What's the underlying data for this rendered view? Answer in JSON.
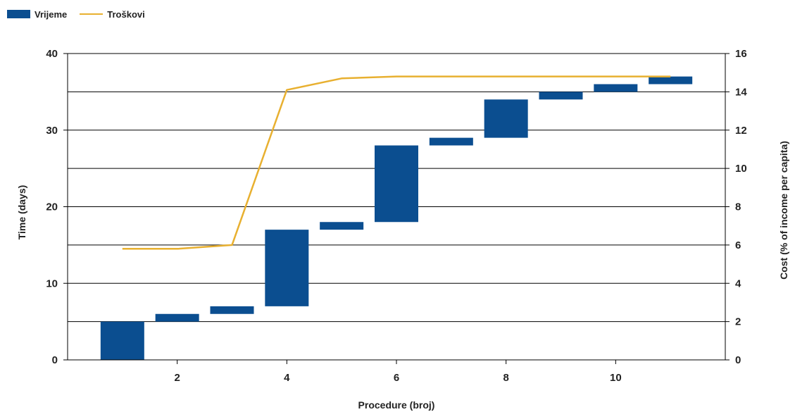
{
  "chart_data": {
    "type": "bar",
    "subtype": "waterfall-with-line",
    "legend": {
      "position": "top-left",
      "entries": [
        {
          "label": "Vrijeme",
          "kind": "bar",
          "color": "#0B4E90"
        },
        {
          "label": "Troškovi",
          "kind": "line",
          "color": "#E8B030"
        }
      ]
    },
    "xlabel": "Procedure (broj)",
    "ylabel": "Time (days)",
    "y2label": "Cost (% of income per capita)",
    "xlim": [
      0,
      12
    ],
    "ylim": [
      0,
      40
    ],
    "y2lim": [
      0,
      16
    ],
    "xticks": [
      2,
      4,
      6,
      8,
      10
    ],
    "yticks": [
      0,
      10,
      20,
      30,
      40
    ],
    "y2ticks": [
      0,
      2,
      4,
      6,
      8,
      10,
      12,
      14,
      16
    ],
    "grid": "horizontal",
    "series": [
      {
        "name": "Vrijeme",
        "axis": "left",
        "type": "floating-bar",
        "color": "#0B4E90",
        "x": [
          1,
          2,
          3,
          4,
          5,
          6,
          7,
          8,
          9,
          10,
          11
        ],
        "start": [
          0,
          5,
          6,
          7,
          17,
          18,
          28,
          29,
          34,
          35,
          36
        ],
        "end": [
          5,
          6,
          7,
          17,
          18,
          28,
          29,
          34,
          35,
          36,
          37
        ]
      },
      {
        "name": "Troškovi",
        "axis": "right",
        "type": "line",
        "color": "#E8B030",
        "x": [
          1,
          2,
          3,
          4,
          5,
          6,
          7,
          8,
          9,
          10,
          11
        ],
        "values": [
          5.8,
          5.8,
          6.0,
          14.1,
          14.7,
          14.8,
          14.8,
          14.8,
          14.8,
          14.8,
          14.8
        ]
      }
    ]
  }
}
